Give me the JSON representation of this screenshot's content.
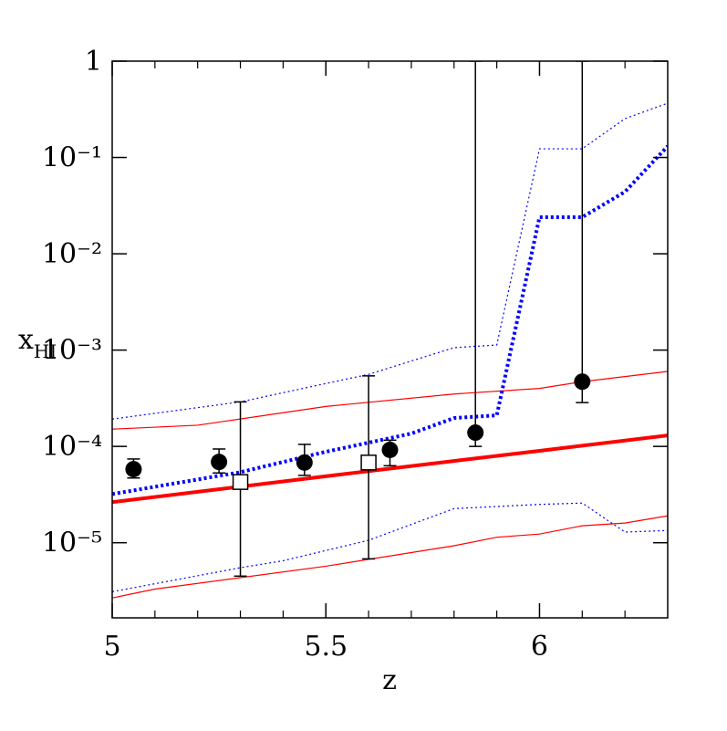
{
  "chart_data": {
    "type": "line",
    "xlabel": "z",
    "ylabel": "x",
    "ylabel_subscript": "HI",
    "xlim": [
      5,
      6.3
    ],
    "ylim": [
      1.66e-06,
      1
    ],
    "ylog": true,
    "xticks": [
      5,
      5.5,
      6
    ],
    "xminorticks": [
      5.1,
      5.2,
      5.3,
      5.4,
      5.6,
      5.7,
      5.8,
      5.9,
      6.1,
      6.2
    ],
    "yticks": [
      1,
      {
        "value": 0.1,
        "label": "10⁻¹"
      },
      {
        "value": 0.01,
        "label": "10⁻²"
      },
      {
        "value": 0.001,
        "label": "10⁻³"
      },
      {
        "value": 0.0001,
        "label": "10⁻⁴"
      },
      {
        "value": 1e-05,
        "label": "10⁻⁵"
      }
    ],
    "series": [
      {
        "kind": "line",
        "color": "#ff0000",
        "width": 1.2,
        "dash": "none",
        "x": [
          5,
          5.2,
          5.5,
          5.8,
          6.0,
          6.1,
          6.3
        ],
        "values": [
          0.000151,
          0.000166,
          0.00026,
          0.00035,
          0.0004,
          0.00047,
          0.0006
        ]
      },
      {
        "kind": "line",
        "color": "#ff0000",
        "width": 1.2,
        "dash": "none",
        "x": [
          5,
          5.1,
          5.5,
          5.8,
          5.9,
          6.0,
          6.1,
          6.2,
          6.3
        ],
        "values": [
          2.67e-06,
          3.3e-06,
          5.7e-06,
          9.3e-06,
          1.14e-05,
          1.23e-05,
          1.5e-05,
          1.6e-05,
          1.9e-05
        ]
      },
      {
        "kind": "line",
        "color": "#ff0000",
        "width": 4,
        "dash": "none",
        "x": [
          5,
          5.5,
          6,
          6.3
        ],
        "values": [
          2.64e-05,
          4.9e-05,
          9e-05,
          0.00013
        ]
      },
      {
        "kind": "line",
        "color": "#0000ff",
        "width": 1.2,
        "dash": "2 3",
        "x": [
          5,
          5.3,
          5.6,
          5.8,
          5.9,
          6.0,
          6.1,
          6.2,
          6.3
        ],
        "values": [
          0.000192,
          0.00029,
          0.00056,
          0.00106,
          0.00113,
          0.123,
          0.123,
          0.253,
          0.366
        ]
      },
      {
        "kind": "line",
        "color": "#0000ff",
        "width": 1.2,
        "dash": "2 3",
        "x": [
          5,
          5.3,
          5.4,
          5.6,
          5.8,
          6.0,
          6.1,
          6.2,
          6.3
        ],
        "values": [
          3.1e-06,
          5.5e-06,
          6.5e-06,
          1.06e-05,
          2.26e-05,
          2.5e-05,
          2.58e-05,
          1.29e-05,
          1.34e-05
        ]
      },
      {
        "kind": "line",
        "color": "#0000ff",
        "width": 4,
        "dash": "3 3",
        "x": [
          5,
          5.3,
          5.5,
          5.7,
          5.8,
          5.9,
          6.0,
          6.1,
          6.2,
          6.3
        ],
        "values": [
          3.2e-05,
          5.4e-05,
          8.8e-05,
          0.000136,
          0.000197,
          0.00021,
          0.024,
          0.024,
          0.044,
          0.131
        ]
      },
      {
        "kind": "points",
        "marker": "circle",
        "color": "#000000",
        "x": [
          5.05,
          5.25,
          5.45,
          5.65,
          5.85,
          6.1
        ],
        "values": [
          5.8e-05,
          6.9e-05,
          6.8e-05,
          9.2e-05,
          0.000139,
          0.00047
        ],
        "lower": [
          4.7e-05,
          5.3e-05,
          5e-05,
          6.3e-05,
          0.0001,
          0.000285
        ],
        "upper": [
          7.4e-05,
          9.4e-05,
          0.000105,
          0.000116,
          1,
          1
        ]
      },
      {
        "kind": "points",
        "marker": "square",
        "color": "#000000",
        "x": [
          5.3,
          5.6
        ],
        "values": [
          4.27e-05,
          6.8e-05
        ],
        "lower": [
          4.5e-06,
          6.8e-06
        ],
        "upper": [
          0.00029,
          0.00054
        ]
      }
    ]
  }
}
